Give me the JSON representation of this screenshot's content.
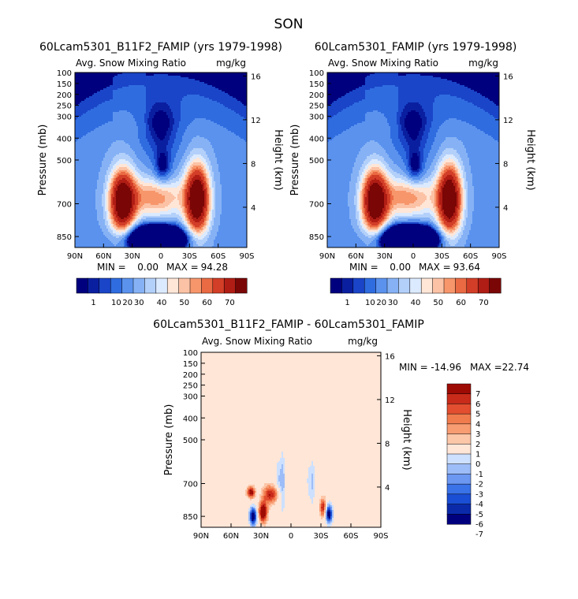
{
  "season": "SON",
  "colors": {
    "absolute": [
      "#00007f",
      "#0a1fa0",
      "#1a45c8",
      "#2f6ce0",
      "#5a92ee",
      "#86b2f5",
      "#b3d0fa",
      "#dceaff",
      "#ffe6d7",
      "#fcc2a5",
      "#f7966b",
      "#ea6a43",
      "#d23e27",
      "#b01d14",
      "#7a0606"
    ],
    "difference": [
      "#00007f",
      "#0a2aaa",
      "#1a4ed4",
      "#3a72e8",
      "#6d98f2",
      "#9dbdf8",
      "#cde0ff",
      "#ffe6d7",
      "#fcc6a8",
      "#f89c72",
      "#f07c4e",
      "#e24e2f",
      "#c82b1a",
      "#9e0b05"
    ]
  },
  "chart_data": [
    {
      "type": "heatmap",
      "title": "60Lcam5301_B11F2_FAMIP (yrs 1979-1998)",
      "subtitle_left": "Avg. Snow Mixing Ratio",
      "subtitle_right": "mg/kg",
      "ylabel": "Pressure (mb)",
      "ylabel_right": "Height (km)",
      "x_ticks": [
        "90N",
        "60N",
        "30N",
        "0",
        "30S",
        "60S",
        "90S"
      ],
      "y_ticks": [
        "100",
        "150",
        "200",
        "250",
        "300",
        "400",
        "500",
        "700",
        "850"
      ],
      "y_ticks_right": [
        "16",
        "12",
        "8",
        "4"
      ],
      "stats": {
        "min_label": "MIN =",
        "min": "0.00",
        "max_label": "MAX =",
        "max": "94.28"
      },
      "colorbar_labels": [
        "1",
        "10",
        "20",
        "30",
        "40",
        "50",
        "60",
        "70"
      ]
    },
    {
      "type": "heatmap",
      "title": "60Lcam5301_FAMIP (yrs 1979-1998)",
      "subtitle_left": "Avg. Snow Mixing Ratio",
      "subtitle_right": "mg/kg",
      "ylabel": "Pressure (mb)",
      "ylabel_right": "Height (km)",
      "x_ticks": [
        "90N",
        "60N",
        "30N",
        "0",
        "30S",
        "60S",
        "90S"
      ],
      "y_ticks": [
        "100",
        "150",
        "200",
        "250",
        "300",
        "400",
        "500",
        "700",
        "850"
      ],
      "y_ticks_right": [
        "16",
        "12",
        "8",
        "4"
      ],
      "stats": {
        "min_label": "MIN =",
        "min": "0.00",
        "max_label": "MAX =",
        "max": "93.64"
      },
      "colorbar_labels": [
        "1",
        "10",
        "20",
        "30",
        "40",
        "50",
        "60",
        "70"
      ]
    },
    {
      "type": "heatmap",
      "title": "60Lcam5301_B11F2_FAMIP - 60Lcam5301_FAMIP",
      "subtitle_left": "Avg. Snow Mixing Ratio",
      "subtitle_right": "mg/kg",
      "ylabel": "Pressure (mb)",
      "ylabel_right": "Height (km)",
      "x_ticks": [
        "90N",
        "60N",
        "30N",
        "0",
        "30S",
        "60S",
        "90S"
      ],
      "y_ticks": [
        "100",
        "150",
        "200",
        "250",
        "300",
        "400",
        "500",
        "700",
        "850"
      ],
      "y_ticks_right": [
        "16",
        "12",
        "8",
        "4"
      ],
      "stats": {
        "min_label": "MIN =",
        "min": "-14.96",
        "max_label": "MAX =",
        "max": "22.74"
      },
      "colorbar_labels": [
        "7",
        "6",
        "5",
        "4",
        "3",
        "2",
        "1",
        "0",
        "-1",
        "-2",
        "-3",
        "-4",
        "-5",
        "-6",
        "-7"
      ]
    }
  ]
}
